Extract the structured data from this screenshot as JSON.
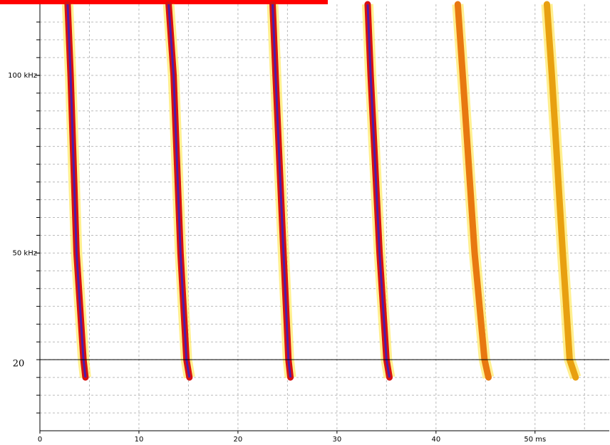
{
  "chart_data": {
    "type": "spectrogram",
    "xlim": [
      0,
      57.5
    ],
    "ylim": [
      0,
      120
    ],
    "xticks": [
      0,
      10,
      20,
      30,
      40,
      {
        "value": 50,
        "label": "50 ms"
      }
    ],
    "yticks": [
      {
        "value": 50,
        "label": "50 kHz"
      },
      {
        "value": 100,
        "label": "100 kHz"
      }
    ],
    "grid": true,
    "grid_xstep": 5,
    "grid_ystep": 5,
    "threshold": {
      "value": 20,
      "label": "20",
      "color": "#000000"
    },
    "series": [
      {
        "color": "#d81010",
        "x": [
          2.8,
          3.1,
          3.7,
          4.4,
          4.6
        ],
        "values": [
          120,
          100,
          50,
          20,
          15
        ]
      },
      {
        "color": "#d81010",
        "x": [
          13.0,
          13.5,
          14.2,
          14.8,
          15.1
        ],
        "values": [
          120,
          100,
          50,
          20,
          15
        ]
      },
      {
        "color": "#d81010",
        "x": [
          23.5,
          23.8,
          24.6,
          25.1,
          25.3
        ],
        "values": [
          120,
          100,
          50,
          20,
          15
        ]
      },
      {
        "color": "#d81010",
        "x": [
          33.1,
          33.4,
          34.3,
          35.0,
          35.3
        ],
        "values": [
          120,
          100,
          50,
          20,
          15
        ]
      },
      {
        "color": "#e87810",
        "x": [
          42.2,
          42.7,
          43.9,
          44.9,
          45.3
        ],
        "values": [
          120,
          100,
          50,
          20,
          15
        ]
      },
      {
        "color": "#e8a010",
        "x": [
          51.2,
          51.7,
          52.8,
          53.5,
          54.1
        ],
        "values": [
          120,
          100,
          50,
          20,
          15
        ]
      }
    ]
  }
}
